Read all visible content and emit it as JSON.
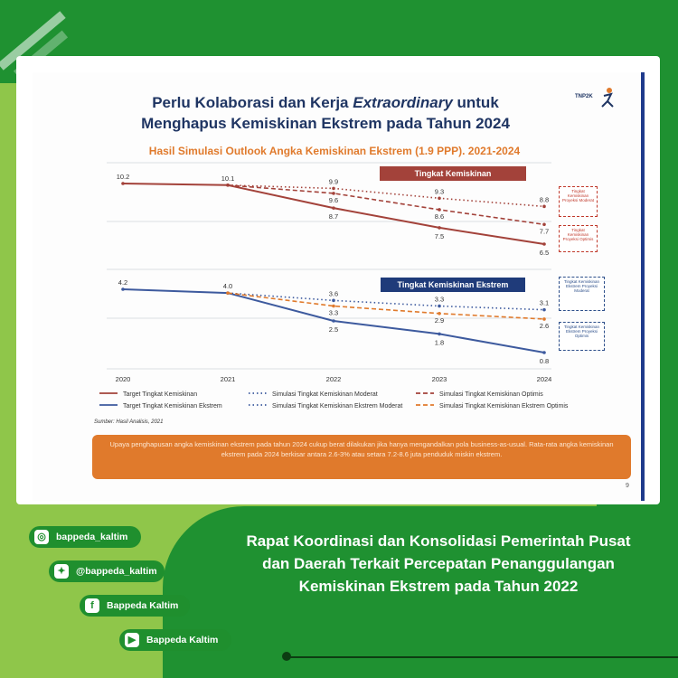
{
  "slide": {
    "title_line1_a": "Perlu Kolaborasi dan Kerja ",
    "title_line1_em": "Extraordinary",
    "title_line1_b": " untuk",
    "title_line2": "Menghapus Kemiskinan Ekstrem pada Tahun 2024",
    "subtitle": "Hasil Simulasi Outlook Angka Kemiskinan Ekstrem (1.9 PPP). 2021-2024",
    "logo_text": "TNP2K",
    "source": "Sumber: Hasil Analisis, 2021",
    "callout": "Upaya penghapusan angka kemiskinan ekstrem pada tahun 2024 cukup berat dilakukan jika hanya mengandalkan pola business-as-usual. Rata-rata angka kemiskinan ekstrem pada 2024 berkisar antara 2.6-3% atau setara 7.2-8.6 juta penduduk miskin ekstrem.",
    "page_number": "9"
  },
  "chart_data": [
    {
      "type": "line",
      "title": "Tingkat Kemiskinan",
      "x": [
        "2020",
        "2021",
        "2022",
        "2023",
        "2024"
      ],
      "series": [
        {
          "name": "Target Tingkat Kemiskinan",
          "style": "solid",
          "color": "#a3423a",
          "values": [
            10.2,
            10.1,
            8.7,
            7.5,
            6.5
          ]
        },
        {
          "name": "Simulasi Tingkat Kemiskinan Moderat",
          "style": "dotted",
          "color": "#a3423a",
          "values": [
            null,
            10.1,
            9.9,
            9.3,
            8.8
          ]
        },
        {
          "name": "Simulasi Tingkat Kemiskinan Optimis",
          "style": "dashed",
          "color": "#a3423a",
          "values": [
            null,
            10.1,
            9.6,
            8.6,
            7.7
          ]
        }
      ],
      "point_labels": [
        "10.2",
        "10.1",
        "9.9",
        "9.6",
        "8.7",
        "9.3",
        "8.6",
        "7.5",
        "8.8",
        "7.7",
        "6.5"
      ],
      "annotations": [
        "Tingkat Kemiskinan Proyeksi Moderat",
        "Tingkat Kemiskinan Proyeksi Optimis"
      ]
    },
    {
      "type": "line",
      "title": "Tingkat Kemiskinan Ekstrem",
      "x": [
        "2020",
        "2021",
        "2022",
        "2023",
        "2024"
      ],
      "series": [
        {
          "name": "Target Tingkat Kemiskinan Ekstrem",
          "style": "solid",
          "color": "#3d5a9e",
          "values": [
            4.2,
            4.0,
            2.5,
            1.8,
            0.8
          ]
        },
        {
          "name": "Simulasi Tingkat Kemiskinan Ekstrem Moderat",
          "style": "dotted",
          "color": "#3d5a9e",
          "values": [
            null,
            4.0,
            3.6,
            3.3,
            3.1
          ]
        },
        {
          "name": "Simulasi Tingkat Kemiskinan Ekstrem Optimis",
          "style": "dashed",
          "color": "#e07a2c",
          "values": [
            null,
            4.0,
            3.3,
            2.9,
            2.6
          ]
        }
      ],
      "point_labels": [
        "4.2",
        "4.0",
        "3.6",
        "3.3",
        "2.5",
        "3.3",
        "2.9",
        "1.8",
        "3.1",
        "2.6",
        "0.8"
      ],
      "annotations": [
        "Tingkat Kemiskinan Ekstrem Proyeksi Moderat",
        "Tingkat Kemiskinan Ekstrem Proyeksi Optimis"
      ]
    }
  ],
  "legend": [
    "Target Tingkat Kemiskinan",
    "Simulasi Tingkat Kemiskinan Moderat",
    "Simulasi Tingkat Kemiskinan Optimis",
    "Target Tingkat Kemiskinan Ekstrem",
    "Simulasi Tingkat Kemiskinan Ekstrem Moderat",
    "Simulasi Tingkat Kemiskinan Ekstrem Optimis"
  ],
  "social": {
    "instagram": "bappeda_kaltim",
    "twitter": "@bappeda_kaltim",
    "facebook": "Bappeda Kaltim",
    "youtube": "Bappeda Kaltim"
  },
  "headline": "Rapat Koordinasi dan Konsolidasi Pemerintah Pusat dan Daerah Terkait Percepatan Penanggulangan Kemiskinan Ekstrem pada Tahun 2022",
  "colors": {
    "dark_green": "#1f9131",
    "light_green": "#8fc64a",
    "navy": "#1f3563",
    "orange": "#e07a2c",
    "red": "#a3423a",
    "blue": "#3d5a9e"
  }
}
